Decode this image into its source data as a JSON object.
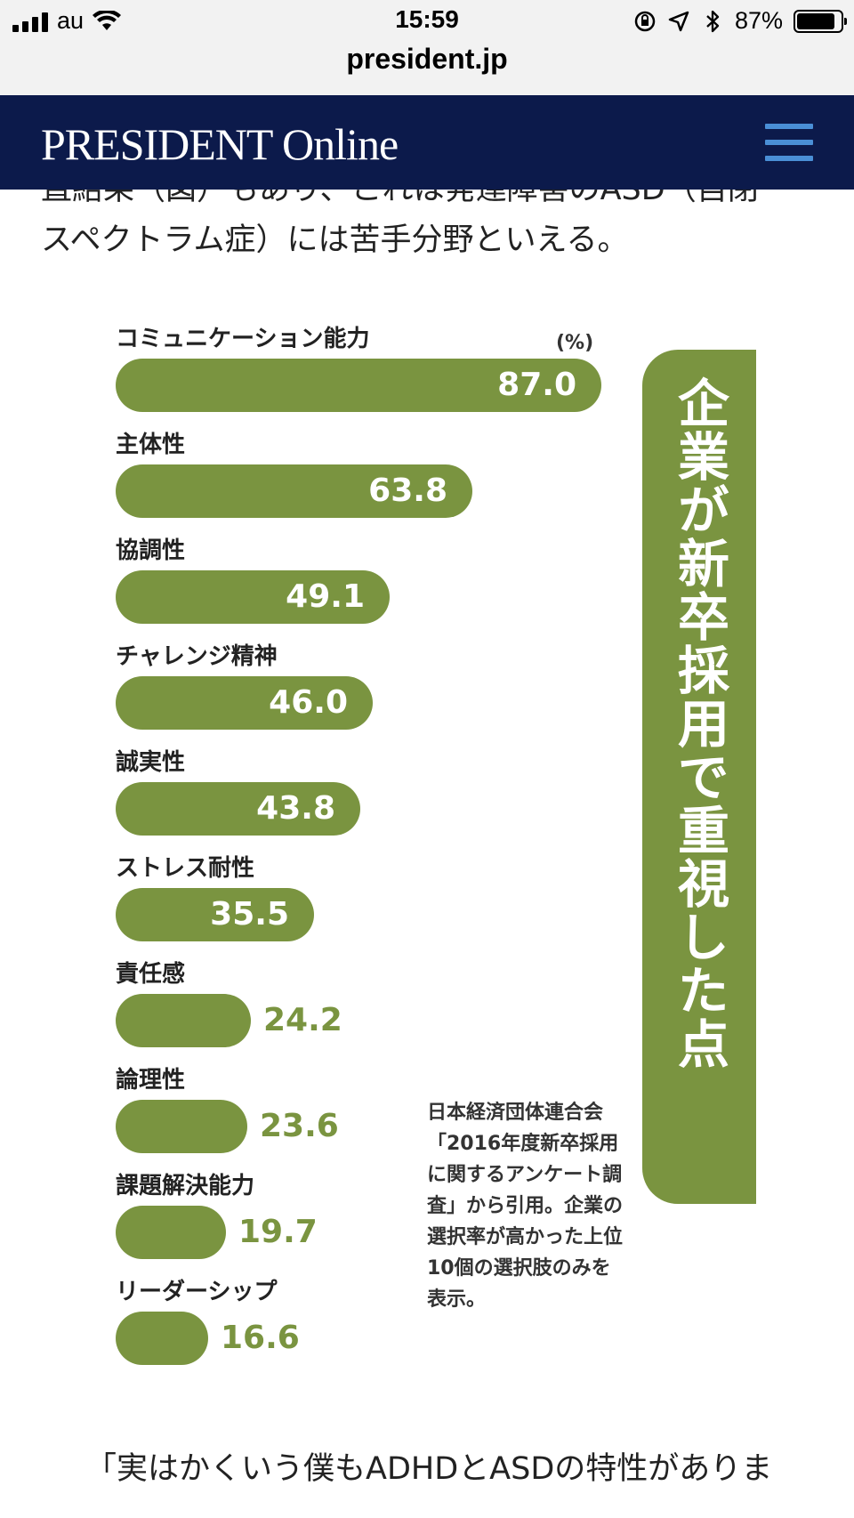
{
  "status_bar": {
    "carrier": "au",
    "time": "15:59",
    "battery": "87%",
    "battery_level": 0.87
  },
  "browser": {
    "url": "president.jp"
  },
  "site": {
    "logo": "PRESIDENT Online"
  },
  "article": {
    "para_top_line1": "直結果（図）もあり、これは発達障害のASD（自閉",
    "para_top_line2": "スペクトラム症）には苦手分野といえる。",
    "para_bottom": "「実はかくいう僕もADHDとASDの特性がありま"
  },
  "chart_data": {
    "type": "bar",
    "title": "企業が新卒採用で重視した点",
    "unit": "(%)",
    "categories": [
      "コミュニケーション能力",
      "主体性",
      "協調性",
      "チャレンジ精神",
      "誠実性",
      "ストレス耐性",
      "責任感",
      "論理性",
      "課題解決能力",
      "リーダーシップ"
    ],
    "values": [
      87.0,
      63.8,
      49.1,
      46.0,
      43.8,
      35.5,
      24.2,
      23.6,
      19.7,
      16.6
    ],
    "value_labels": [
      "87.0",
      "63.8",
      "49.1",
      "46.0",
      "43.8",
      "35.5",
      "24.2",
      "23.6",
      "19.7",
      "16.6"
    ],
    "xlim": [
      0,
      90
    ],
    "bar_color": "#7a9440",
    "note": "日本経済団体連合会「2016年度新卒採用に関するアンケート調査」から引用。企業の選択率が高かった上位10個の選択肢のみを表示。"
  }
}
